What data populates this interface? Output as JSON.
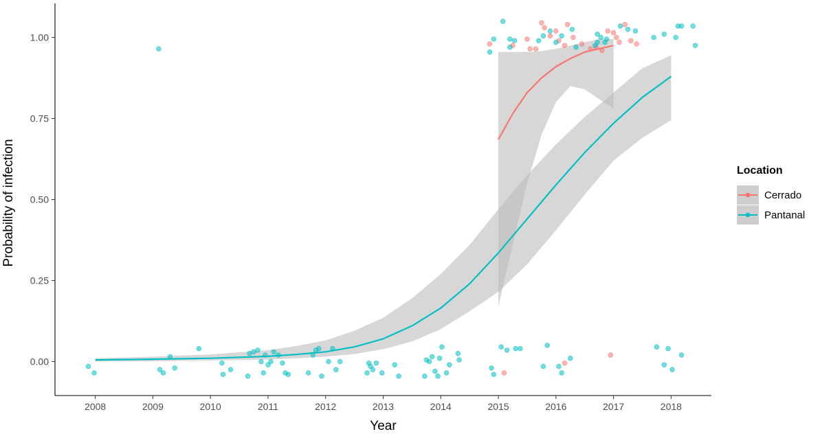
{
  "chart_data": {
    "type": "scatter",
    "xlabel": "Year",
    "ylabel": "Probability of infection",
    "xlim": [
      2007.3,
      2018.7
    ],
    "ylim": [
      -0.105,
      1.105
    ],
    "x_ticks": [
      2008,
      2009,
      2010,
      2011,
      2012,
      2013,
      2014,
      2015,
      2016,
      2017,
      2018
    ],
    "y_ticks": [
      0.0,
      0.25,
      0.5,
      0.75,
      1.0
    ],
    "y_tick_labels": [
      "0.00",
      "0.25",
      "0.50",
      "0.75",
      "1.00"
    ],
    "grid": false,
    "legend": {
      "title": "Location",
      "placement": "right",
      "entries": [
        "Cerrado",
        "Pantanal"
      ]
    },
    "colors": {
      "Cerrado": "#F8766D",
      "Pantanal": "#00BFC4",
      "ribbon": "#BDBDBD"
    },
    "series": [
      {
        "name": "Cerrado",
        "fit": {
          "x": [
            2015.0,
            2015.25,
            2015.5,
            2015.75,
            2016.0,
            2016.25,
            2016.5,
            2016.75,
            2017.0
          ],
          "y": [
            0.685,
            0.765,
            0.83,
            0.875,
            0.91,
            0.935,
            0.955,
            0.965,
            0.975
          ],
          "lower": [
            0.17,
            0.36,
            0.55,
            0.7,
            0.8,
            0.85,
            0.84,
            0.81,
            0.78
          ],
          "upper": [
            0.955,
            0.955,
            0.955,
            0.958,
            0.965,
            0.975,
            0.985,
            0.995,
            0.995
          ]
        },
        "points": {
          "x": [
            2014.85,
            2015.25,
            2015.5,
            2015.55,
            2015.65,
            2015.75,
            2015.8,
            2015.9,
            2016.0,
            2016.05,
            2016.15,
            2016.2,
            2016.3,
            2016.45,
            2016.6,
            2016.7,
            2016.8,
            2016.9,
            2017.0,
            2017.05,
            2017.1,
            2017.2,
            2017.3,
            2017.4,
            2015.1,
            2016.15,
            2016.95
          ],
          "y": [
            0.98,
            0.975,
            0.995,
            0.965,
            0.965,
            1.045,
            1.03,
            1.005,
            1.02,
            0.99,
            0.975,
            1.04,
            1.0,
            0.98,
            0.965,
            0.97,
            0.96,
            1.02,
            1.015,
            1.0,
            0.985,
            1.04,
            0.99,
            0.98,
            -0.035,
            -0.005,
            0.02
          ]
        }
      },
      {
        "name": "Pantanal",
        "fit": {
          "x": [
            2008.0,
            2009.0,
            2010.0,
            2011.0,
            2011.5,
            2012.0,
            2012.5,
            2013.0,
            2013.5,
            2014.0,
            2014.5,
            2015.0,
            2015.5,
            2016.0,
            2016.5,
            2017.0,
            2017.5,
            2018.0
          ],
          "y": [
            0.005,
            0.007,
            0.01,
            0.016,
            0.022,
            0.03,
            0.045,
            0.07,
            0.11,
            0.165,
            0.24,
            0.335,
            0.44,
            0.545,
            0.645,
            0.735,
            0.815,
            0.88
          ],
          "lower": [
            0.0,
            0.001,
            0.003,
            0.006,
            0.01,
            0.015,
            0.023,
            0.038,
            0.062,
            0.1,
            0.155,
            0.215,
            0.3,
            0.405,
            0.515,
            0.62,
            0.69,
            0.745
          ],
          "upper": [
            0.01,
            0.015,
            0.022,
            0.035,
            0.048,
            0.065,
            0.095,
            0.135,
            0.195,
            0.27,
            0.36,
            0.47,
            0.575,
            0.67,
            0.755,
            0.83,
            0.905,
            0.945
          ]
        },
        "points": {
          "x": [
            2007.88,
            2007.98,
            2009.1,
            2009.12,
            2009.18,
            2009.3,
            2009.38,
            2009.8,
            2010.2,
            2010.22,
            2010.35,
            2010.65,
            2010.68,
            2010.75,
            2010.82,
            2010.88,
            2010.92,
            2010.95,
            2011.0,
            2011.05,
            2011.1,
            2011.18,
            2011.25,
            2011.3,
            2011.35,
            2011.7,
            2011.78,
            2011.83,
            2011.88,
            2011.93,
            2012.05,
            2012.12,
            2012.18,
            2012.25,
            2012.72,
            2012.75,
            2012.78,
            2012.82,
            2012.88,
            2012.98,
            2013.2,
            2013.27,
            2013.72,
            2013.75,
            2013.8,
            2013.85,
            2013.9,
            2013.95,
            2013.98,
            2014.02,
            2014.1,
            2014.15,
            2014.3,
            2014.32,
            2014.88,
            2014.92,
            2015.05,
            2015.15,
            2015.3,
            2015.38,
            2015.78,
            2015.85,
            2016.05,
            2016.1,
            2016.25,
            2017.75,
            2017.88,
            2017.95,
            2018.02,
            2018.18,
            2014.85,
            2014.92,
            2015.2,
            2015.28,
            2015.7,
            2015.78,
            2015.9,
            2016.0,
            2016.1,
            2016.28,
            2016.35,
            2016.68,
            2016.72,
            2016.78,
            2016.85,
            2016.88,
            2017.12,
            2017.25,
            2017.38,
            2017.7,
            2017.88,
            2018.08,
            2018.12,
            2018.18,
            2018.38,
            2015.2,
            2015.08,
            2016.72,
            2018.42
          ],
          "y": [
            -0.015,
            -0.035,
            0.965,
            -0.025,
            -0.035,
            0.015,
            -0.02,
            0.04,
            -0.005,
            -0.04,
            -0.025,
            -0.045,
            0.025,
            0.03,
            0.035,
            0.0,
            -0.035,
            0.02,
            -0.01,
            0.0,
            0.03,
            0.02,
            -0.005,
            -0.035,
            -0.04,
            -0.035,
            0.02,
            0.035,
            0.04,
            -0.045,
            0.0,
            0.04,
            -0.025,
            0.0,
            -0.035,
            -0.005,
            -0.015,
            -0.025,
            -0.005,
            -0.035,
            -0.01,
            -0.045,
            -0.045,
            0.005,
            0.0,
            0.015,
            -0.03,
            -0.045,
            0.01,
            0.045,
            -0.035,
            -0.01,
            0.025,
            0.005,
            -0.02,
            -0.04,
            0.045,
            0.035,
            0.04,
            0.04,
            -0.015,
            0.05,
            -0.015,
            -0.035,
            0.01,
            0.045,
            -0.01,
            0.04,
            -0.025,
            0.02,
            0.955,
            0.995,
            0.995,
            0.99,
            0.99,
            1.005,
            1.02,
            0.985,
            1.005,
            1.025,
            0.97,
            0.975,
            1.01,
            1.0,
            0.985,
            0.995,
            1.035,
            1.025,
            1.02,
            1.0,
            1.01,
            1.0,
            1.035,
            1.035,
            1.035,
            0.97,
            1.05,
            0.985,
            0.975
          ]
        }
      }
    ]
  }
}
